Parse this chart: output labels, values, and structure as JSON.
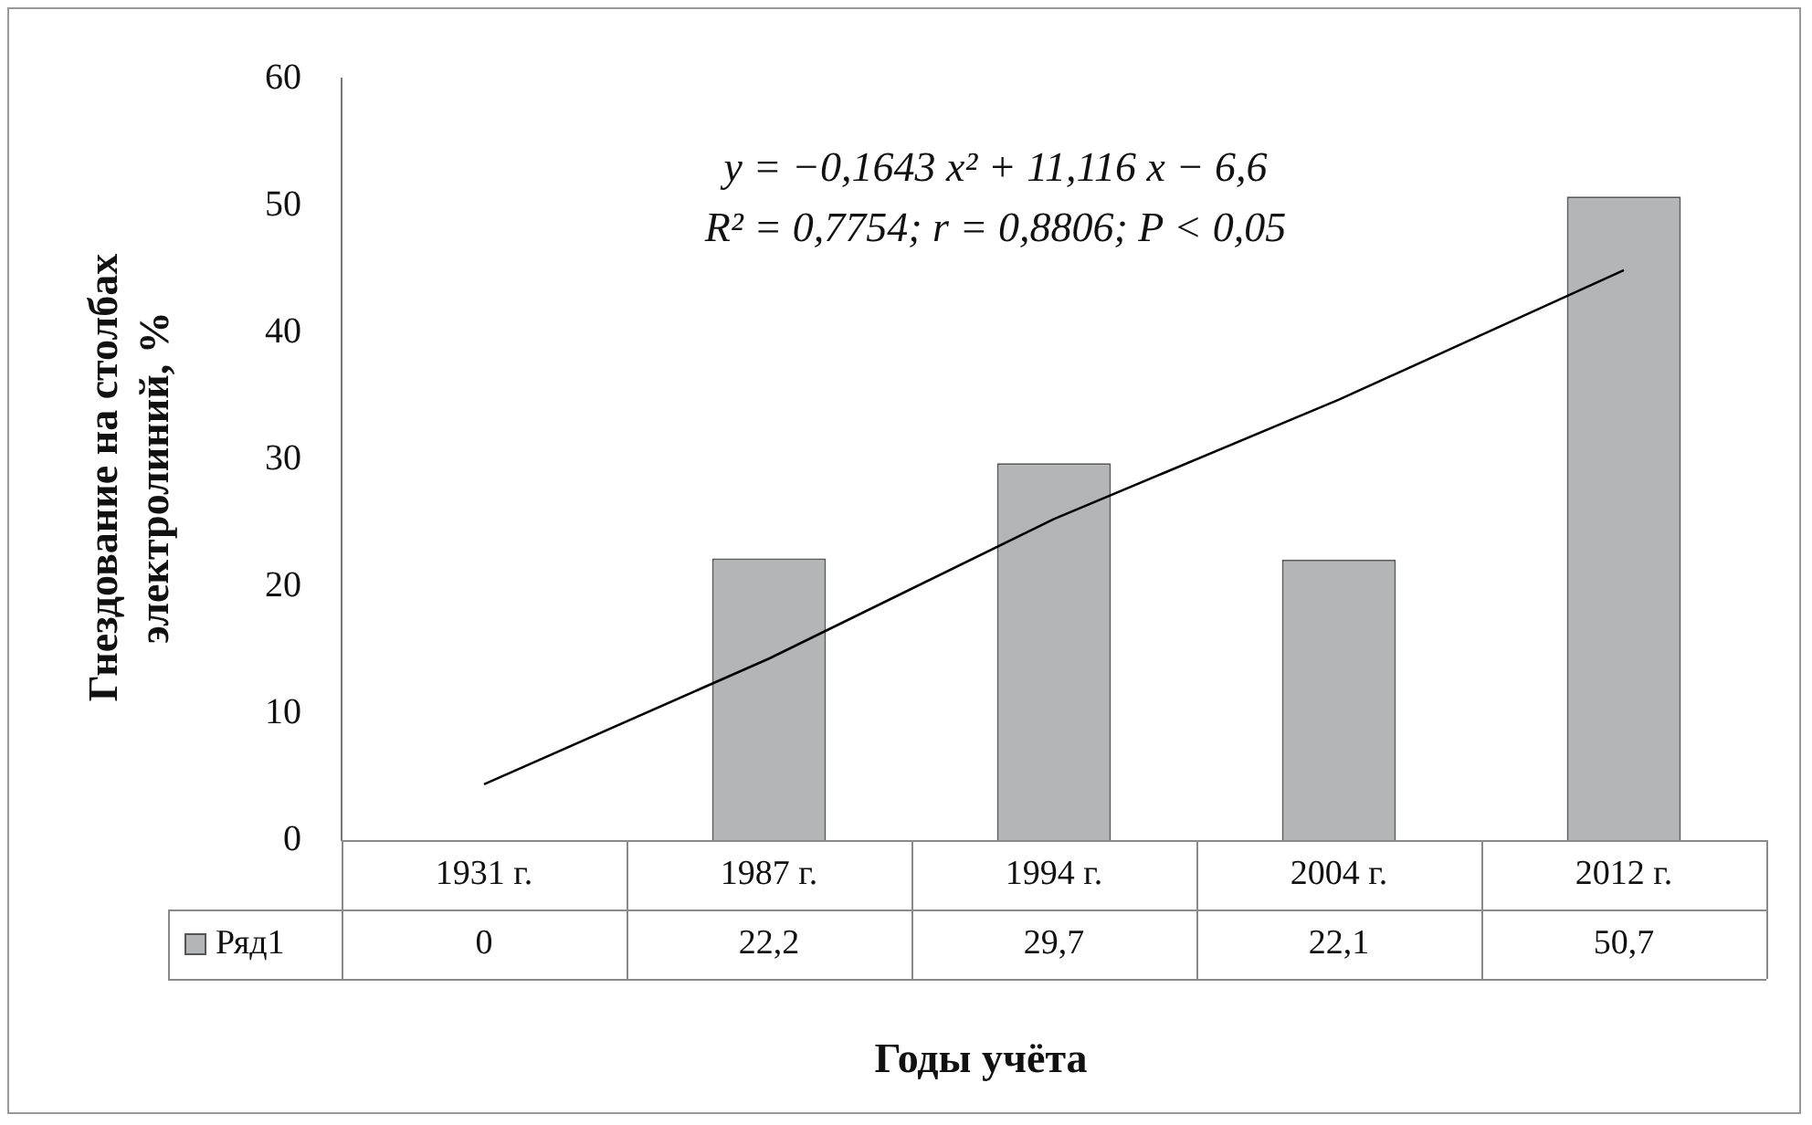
{
  "chart_data": {
    "type": "bar",
    "xlabel": "Годы учёта",
    "ylabel": "Гнездование на столбах электролиний, %",
    "categories": [
      "1931 г.",
      "1987 г.",
      "1994 г.",
      "2004 г.",
      "2012 г."
    ],
    "series": [
      {
        "name": "Ряд1",
        "color": "#b3b5b6",
        "values": [
          0,
          22.2,
          29.7,
          22.1,
          50.7
        ],
        "value_labels": [
          "0",
          "22,2",
          "29,7",
          "22,1",
          "50,7"
        ]
      },
      {
        "type": "line",
        "color": "#000000",
        "x": [
          "1931 г.",
          "1987 г.",
          "1994 г.",
          "2004 г.",
          "2012 г."
        ],
        "values": [
          4.4,
          14.3,
          25.3,
          34.7,
          44.9
        ]
      }
    ],
    "ylim": [
      0,
      60
    ],
    "yticks": [
      0,
      10,
      20,
      30,
      40,
      50,
      60
    ],
    "grid": false,
    "legend": "bottom",
    "marker": "none",
    "annotations": [
      "y = −0,1643 x² + 11,116 x − 6,6",
      "R² = 0,7754; r = 0,8806; P < 0,05"
    ]
  }
}
